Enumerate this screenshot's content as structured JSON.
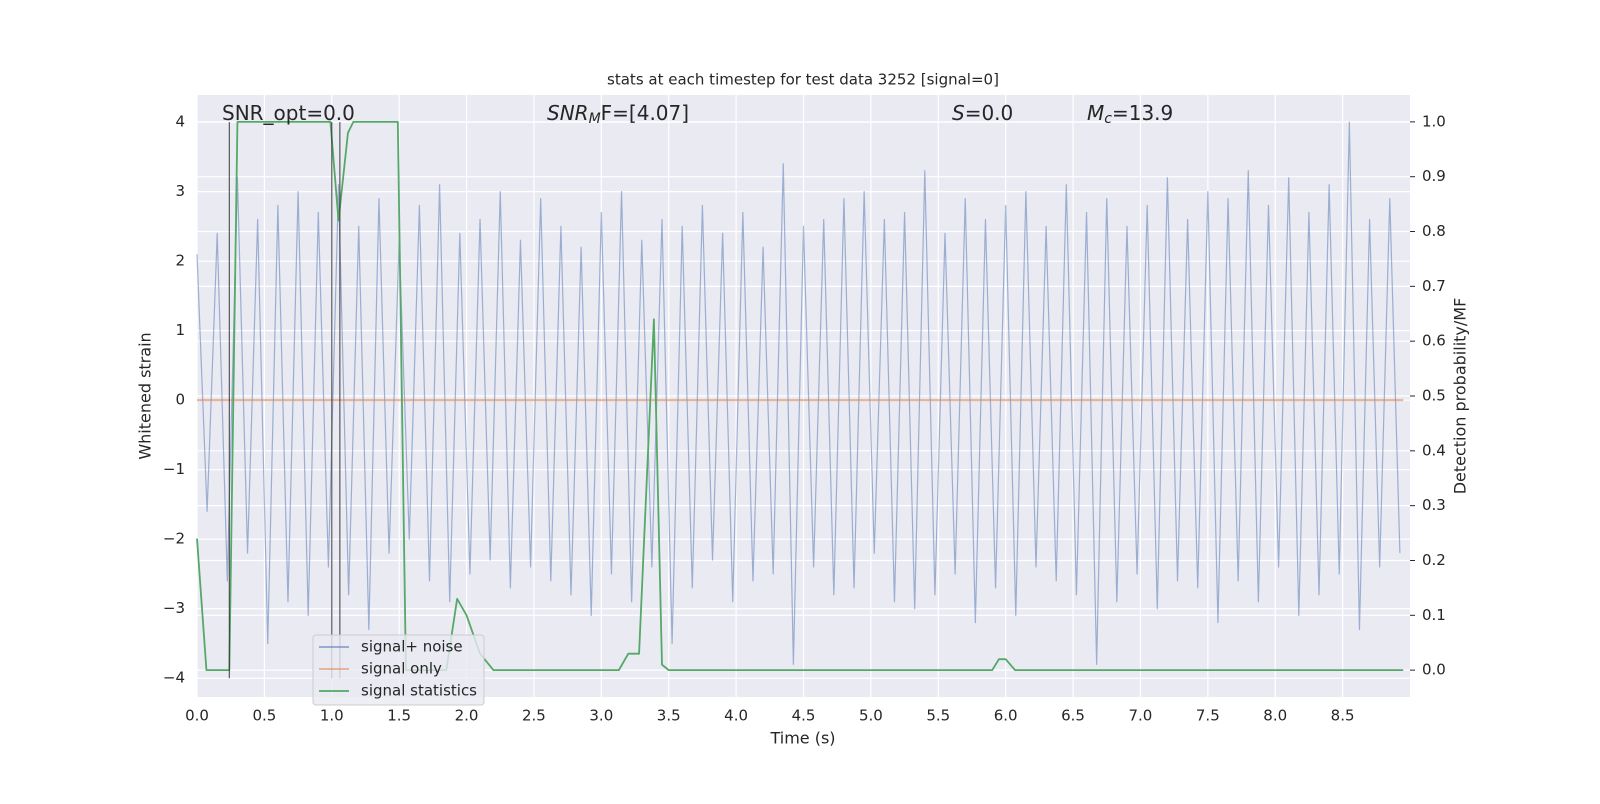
{
  "chart_data": {
    "type": "line",
    "title": "stats at each timestep for test data 3252 [signal=0]",
    "xlabel": "Time (s)",
    "ylabel": "Whitened strain",
    "y2label": "Detection probability/MF",
    "xlim": [
      0,
      9.0
    ],
    "ylim": [
      -4.27,
      4.39
    ],
    "y2lim": [
      -0.049,
      1.049
    ],
    "grid": true,
    "legend_loc": "lower left",
    "xticks": [
      {
        "value": 0,
        "label": "0.0"
      },
      0.5,
      {
        "value": 1,
        "label": "1.0"
      },
      1.5,
      {
        "value": 2,
        "label": "2.0"
      },
      2.5,
      {
        "value": 3,
        "label": "3.0"
      },
      3.5,
      {
        "value": 4,
        "label": "4.0"
      },
      4.5,
      {
        "value": 5,
        "label": "5.0"
      },
      5.5,
      {
        "value": 6,
        "label": "6.0"
      },
      6.5,
      {
        "value": 7,
        "label": "7.0"
      },
      7.5,
      {
        "value": 8,
        "label": "8.0"
      },
      8.5
    ],
    "yticks": [
      {
        "value": -4,
        "label": "−4"
      },
      {
        "value": -3,
        "label": "−3"
      },
      {
        "value": -2,
        "label": "−2"
      },
      {
        "value": -1,
        "label": "−1"
      },
      0,
      1,
      2,
      3,
      4
    ],
    "y2ticks": [
      {
        "value": 0,
        "label": "0.0"
      },
      0.1,
      0.2,
      0.3,
      0.4,
      0.5,
      0.6,
      0.7,
      0.8,
      0.9,
      {
        "value": 1,
        "label": "1.0"
      }
    ],
    "vlines": [
      0.24,
      1.0,
      1.06
    ],
    "annotations": [
      {
        "text": "SNR_opt=0.0"
      },
      {
        "base": "SNR",
        "sub": "M",
        "rest": "F=[4.07]"
      },
      {
        "base": "S",
        "rest": "=0.0"
      },
      {
        "base": "M",
        "sub": "c",
        "rest": "=13.9"
      }
    ],
    "series": [
      {
        "name": "signal+ noise",
        "color": "#4c72b0",
        "x": [
          0,
          0.075,
          0.15,
          0.225,
          0.3,
          0.375,
          0.45,
          0.525,
          0.6,
          0.675,
          0.75,
          0.825,
          0.9,
          0.975,
          1.05,
          1.125,
          1.2,
          1.275,
          1.35,
          1.425,
          1.5,
          1.575,
          1.65,
          1.725,
          1.8,
          1.875,
          1.95,
          2.025,
          2.1,
          2.175,
          2.25,
          2.325,
          2.4,
          2.475,
          2.55,
          2.625,
          2.7,
          2.775,
          2.85,
          2.925,
          3,
          3.075,
          3.15,
          3.225,
          3.3,
          3.375,
          3.45,
          3.525,
          3.6,
          3.675,
          3.75,
          3.825,
          3.9,
          3.975,
          4.05,
          4.125,
          4.2,
          4.275,
          4.35,
          4.425,
          4.5,
          4.575,
          4.65,
          4.725,
          4.8,
          4.875,
          4.95,
          5.025,
          5.1,
          5.175,
          5.25,
          5.325,
          5.4,
          5.475,
          5.55,
          5.625,
          5.7,
          5.775,
          5.85,
          5.925,
          6,
          6.075,
          6.15,
          6.225,
          6.3,
          6.375,
          6.45,
          6.525,
          6.6,
          6.675,
          6.75,
          6.825,
          6.9,
          6.975,
          7.05,
          7.125,
          7.2,
          7.275,
          7.35,
          7.425,
          7.5,
          7.575,
          7.65,
          7.725,
          7.8,
          7.875,
          7.95,
          8.025,
          8.1,
          8.175,
          8.25,
          8.325,
          8.4,
          8.475,
          8.55,
          8.625,
          8.7,
          8.775,
          8.85,
          8.925
        ],
        "values": [
          2.1,
          -1.6,
          2.4,
          -2.6,
          3.2,
          -2.2,
          2.6,
          -3.5,
          2.8,
          -2.9,
          3.0,
          -3.1,
          2.7,
          -2.4,
          3.1,
          -2.8,
          2.5,
          -3.3,
          2.9,
          -2.2,
          2.3,
          -2.0,
          2.8,
          -2.6,
          3.1,
          -2.9,
          2.4,
          -2.5,
          2.6,
          -2.3,
          3.0,
          -2.7,
          2.3,
          -2.4,
          2.9,
          -2.6,
          2.5,
          -2.8,
          2.2,
          -3.1,
          2.7,
          -2.5,
          3.0,
          -2.9,
          2.3,
          -2.4,
          2.6,
          -3.5,
          2.5,
          -2.7,
          2.8,
          -2.3,
          2.4,
          -2.9,
          2.7,
          -2.6,
          2.2,
          -2.5,
          3.4,
          -3.8,
          2.5,
          -2.4,
          2.6,
          -2.8,
          2.9,
          -2.7,
          3.0,
          -2.2,
          2.6,
          -2.9,
          2.7,
          -3.0,
          3.3,
          -2.8,
          2.4,
          -2.5,
          2.9,
          -3.2,
          2.6,
          -2.7,
          2.8,
          -3.1,
          3.0,
          -2.4,
          2.5,
          -2.6,
          3.1,
          -2.8,
          2.7,
          -3.8,
          2.9,
          -2.9,
          2.5,
          -2.5,
          2.8,
          -3.0,
          3.2,
          -2.6,
          2.6,
          -2.7,
          3.0,
          -3.2,
          2.9,
          -2.6,
          3.3,
          -2.9,
          2.8,
          -2.4,
          3.2,
          -3.1,
          2.7,
          -2.8,
          3.1,
          -2.5,
          4.0,
          -3.3,
          2.6,
          -2.4,
          2.9,
          -2.2
        ]
      },
      {
        "name": "signal only",
        "color": "#dd8452",
        "x": [
          0,
          8.95
        ],
        "values": [
          0,
          0
        ]
      },
      {
        "name": "signal statistics",
        "color": "#55a868",
        "axis": "y2",
        "x": [
          0,
          0.07,
          0.24,
          0.3,
          0.99,
          1.05,
          1.12,
          1.16,
          1.49,
          1.55,
          1.85,
          1.93,
          2.0,
          2.1,
          2.2,
          3.13,
          3.2,
          3.28,
          3.39,
          3.45,
          3.5,
          5.9,
          5.95,
          6.0,
          6.07,
          8.95
        ],
        "values": [
          0.24,
          0.0,
          0.0,
          1.0,
          1.0,
          0.82,
          0.98,
          1.0,
          1.0,
          0.0,
          0.0,
          0.13,
          0.1,
          0.03,
          0.0,
          0.0,
          0.03,
          0.03,
          0.64,
          0.01,
          0.0,
          0.0,
          0.02,
          0.02,
          0.0,
          0.0
        ]
      }
    ]
  }
}
